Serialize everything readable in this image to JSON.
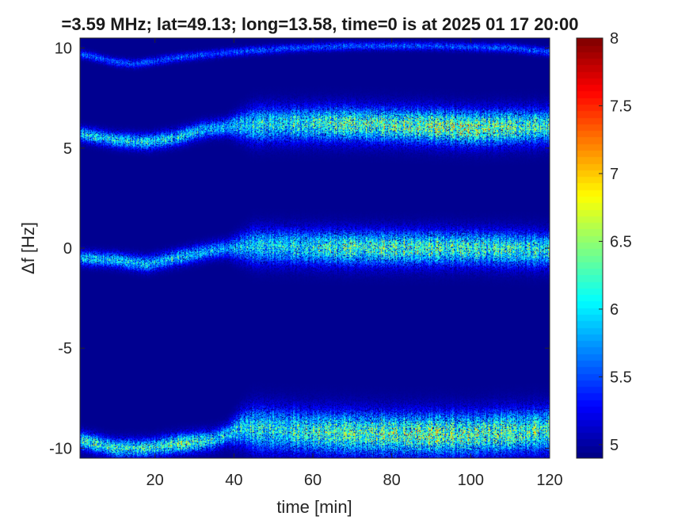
{
  "chart_data": {
    "type": "heatmap",
    "title": "=3.59 MHz;  lat=49.13; long=13.58, time=0 is at 2025 01 17 20:00",
    "xlabel": "time [min]",
    "ylabel": "Δf [Hz]",
    "xlim": [
      1,
      120
    ],
    "ylim": [
      -10.5,
      10.5
    ],
    "xticks": [
      20,
      40,
      60,
      80,
      100,
      120
    ],
    "yticks": [
      10,
      5,
      0,
      -5,
      -10
    ],
    "colorbar": {
      "colormap": "jet",
      "clim": [
        4.9,
        8
      ],
      "ticks": [
        5,
        5.5,
        6,
        6.5,
        7,
        7.5,
        8
      ],
      "tick_labels": [
        "5",
        "5.5",
        "6",
        "6.5",
        "7",
        "7.5",
        "8"
      ]
    },
    "background_value": 4.95,
    "bands": [
      {
        "name": "upper carrier",
        "centerline": [
          [
            1,
            5.7
          ],
          [
            10,
            5.4
          ],
          [
            18,
            5.3
          ],
          [
            25,
            5.5
          ],
          [
            32,
            5.9
          ],
          [
            40,
            6.1
          ],
          [
            50,
            6.2
          ],
          [
            70,
            6.2
          ],
          [
            90,
            6.1
          ],
          [
            100,
            6.0
          ],
          [
            120,
            6.1
          ]
        ],
        "width_hz": [
          [
            1,
            0.5
          ],
          [
            38,
            0.6
          ],
          [
            45,
            1.2
          ],
          [
            120,
            1.2
          ]
        ],
        "peak": [
          [
            1,
            6.5
          ],
          [
            40,
            6.4
          ],
          [
            60,
            6.8
          ],
          [
            90,
            7.1
          ],
          [
            100,
            7.3
          ],
          [
            110,
            6.9
          ],
          [
            120,
            6.7
          ]
        ]
      },
      {
        "name": "center carrier",
        "centerline": [
          [
            1,
            -0.5
          ],
          [
            10,
            -0.6
          ],
          [
            18,
            -0.8
          ],
          [
            25,
            -0.5
          ],
          [
            35,
            -0.1
          ],
          [
            45,
            0.1
          ],
          [
            70,
            0.0
          ],
          [
            100,
            0.0
          ],
          [
            120,
            -0.1
          ]
        ],
        "width_hz": [
          [
            1,
            0.5
          ],
          [
            38,
            0.6
          ],
          [
            45,
            1.2
          ],
          [
            120,
            1.2
          ]
        ],
        "peak": [
          [
            1,
            6.4
          ],
          [
            40,
            6.3
          ],
          [
            60,
            6.7
          ],
          [
            80,
            6.9
          ],
          [
            100,
            6.8
          ],
          [
            120,
            6.6
          ]
        ]
      },
      {
        "name": "lower carrier",
        "centerline": [
          [
            1,
            -9.6
          ],
          [
            10,
            -10.0
          ],
          [
            18,
            -10.0
          ],
          [
            25,
            -9.8
          ],
          [
            35,
            -9.6
          ],
          [
            42,
            -9.0
          ],
          [
            60,
            -9.2
          ],
          [
            80,
            -9.3
          ],
          [
            100,
            -9.3
          ],
          [
            120,
            -9.1
          ]
        ],
        "width_hz": [
          [
            1,
            0.6
          ],
          [
            38,
            0.7
          ],
          [
            45,
            1.5
          ],
          [
            120,
            1.5
          ]
        ],
        "peak": [
          [
            1,
            6.8
          ],
          [
            20,
            6.6
          ],
          [
            27,
            7.0
          ],
          [
            40,
            6.5
          ],
          [
            60,
            6.8
          ],
          [
            80,
            7.0
          ],
          [
            90,
            7.1
          ],
          [
            110,
            6.9
          ],
          [
            120,
            6.8
          ]
        ]
      },
      {
        "name": "faint top trace",
        "centerline": [
          [
            1,
            9.7
          ],
          [
            10,
            9.3
          ],
          [
            15,
            9.2
          ],
          [
            25,
            9.5
          ],
          [
            40,
            9.8
          ],
          [
            55,
            10.0
          ],
          [
            70,
            10.1
          ],
          [
            90,
            10.1
          ],
          [
            110,
            10.0
          ],
          [
            120,
            9.8
          ]
        ],
        "width_hz": [
          [
            1,
            0.3
          ],
          [
            120,
            0.3
          ]
        ],
        "peak": [
          [
            1,
            5.8
          ],
          [
            120,
            5.8
          ]
        ]
      }
    ]
  }
}
